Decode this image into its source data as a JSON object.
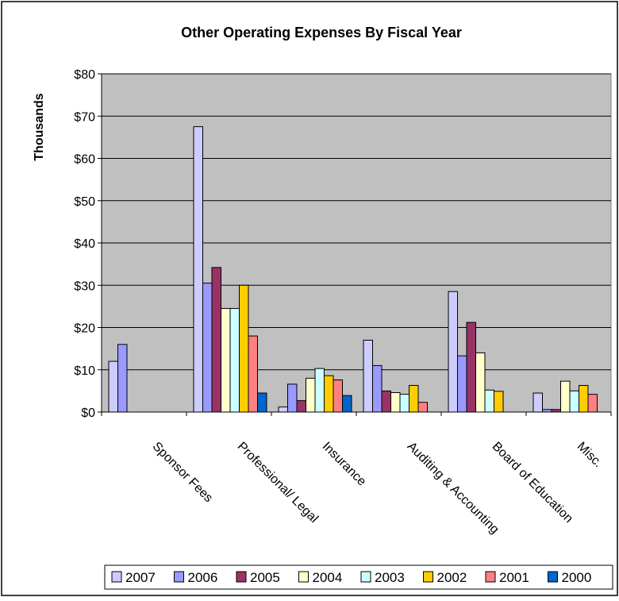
{
  "chart_data": {
    "type": "bar",
    "title": "Other Operating Expenses By Fiscal Year",
    "ylabel": "Thousands",
    "xlabel": "",
    "ylim": [
      0,
      80
    ],
    "yticks": [
      "$0",
      "$10",
      "$20",
      "$30",
      "$40",
      "$50",
      "$60",
      "$70",
      "$80"
    ],
    "grid": true,
    "legend_position": "bottom",
    "plot_background": "#c0c0c0",
    "categories": [
      "Sponsor Fees",
      "Professional/ Legal",
      "Insurance",
      "Auditing & Accounting",
      "Board of Education",
      "Misc."
    ],
    "series": [
      {
        "name": "2007",
        "color": "#ccccff",
        "values": [
          12,
          67.5,
          1.2,
          17,
          28.5,
          4.5
        ]
      },
      {
        "name": "2006",
        "color": "#9999ff",
        "values": [
          16,
          30.5,
          6.6,
          11,
          13.3,
          0.6
        ]
      },
      {
        "name": "2005",
        "color": "#993366",
        "values": [
          0,
          34.2,
          2.7,
          5,
          21.2,
          0.6
        ]
      },
      {
        "name": "2004",
        "color": "#ffffcc",
        "values": [
          0,
          24.5,
          8,
          4.6,
          14,
          7.3
        ]
      },
      {
        "name": "2003",
        "color": "#ccffff",
        "values": [
          0,
          24.5,
          10.3,
          4.2,
          5.2,
          5
        ]
      },
      {
        "name": "2002",
        "color": "#ffcc00",
        "values": [
          0,
          30,
          8.6,
          6.3,
          4.9,
          6.3
        ]
      },
      {
        "name": "2001",
        "color": "#ff8080",
        "values": [
          0,
          18,
          7.6,
          2.3,
          0,
          4.2
        ]
      },
      {
        "name": "2000",
        "color": "#0066cc",
        "values": [
          0,
          4.5,
          3.9,
          0,
          0,
          0
        ]
      }
    ]
  }
}
